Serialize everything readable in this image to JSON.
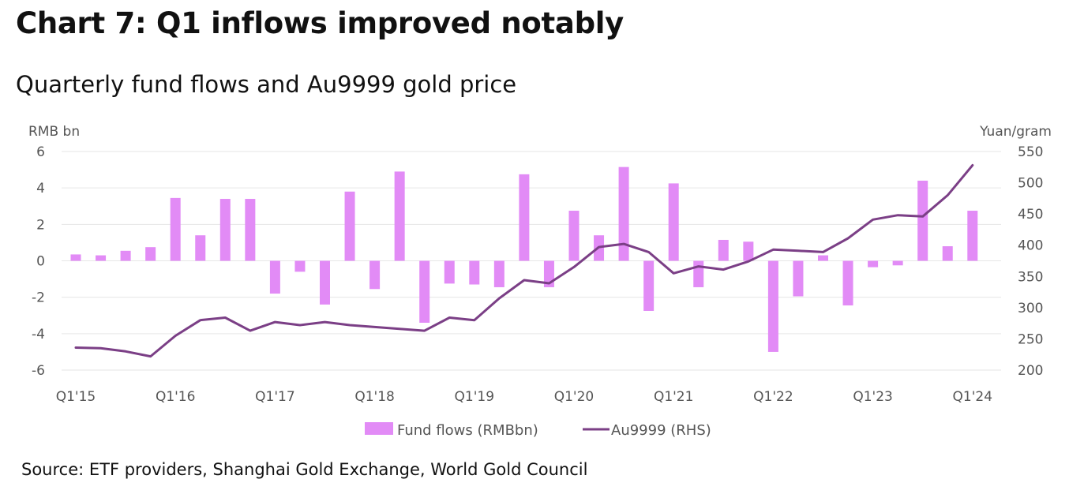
{
  "title": "Chart 7: Q1 inflows improved notably",
  "subtitle": "Quarterly fund flows and Au9999 gold price",
  "source": "Source: ETF providers, Shanghai Gold Exchange, World Gold Council",
  "colors": {
    "bars": "#e28bf6",
    "line": "#7b3f86",
    "grid": "#e6e6e6",
    "text": "#555555"
  },
  "chart_data": {
    "type": "bar",
    "categories": [
      "Q1'15",
      "Q2'15",
      "Q3'15",
      "Q4'15",
      "Q1'16",
      "Q2'16",
      "Q3'16",
      "Q4'16",
      "Q1'17",
      "Q2'17",
      "Q3'17",
      "Q4'17",
      "Q1'18",
      "Q2'18",
      "Q3'18",
      "Q4'18",
      "Q1'19",
      "Q2'19",
      "Q3'19",
      "Q4'19",
      "Q1'20",
      "Q2'20",
      "Q3'20",
      "Q4'20",
      "Q1'21",
      "Q2'21",
      "Q3'21",
      "Q4'21",
      "Q1'22",
      "Q2'22",
      "Q3'22",
      "Q4'22",
      "Q1'23",
      "Q2'23",
      "Q3'23",
      "Q4'23",
      "Q1'24"
    ],
    "x_tick_labels": [
      "Q1'15",
      "Q1'16",
      "Q1'17",
      "Q1'18",
      "Q1'19",
      "Q1'20",
      "Q1'21",
      "Q1'22",
      "Q1'23",
      "Q1'24"
    ],
    "series": [
      {
        "name": "Fund flows (RMBbn)",
        "type": "bar",
        "axis": "left",
        "values": [
          0.35,
          0.3,
          0.55,
          0.75,
          3.45,
          1.4,
          3.4,
          3.4,
          -1.8,
          -0.6,
          -2.4,
          3.8,
          -1.55,
          4.9,
          -3.4,
          -1.25,
          -1.3,
          -1.45,
          4.75,
          -1.45,
          2.75,
          1.4,
          5.15,
          -2.75,
          4.25,
          -1.45,
          1.15,
          1.05,
          -5.0,
          -1.95,
          0.3,
          -2.45,
          -0.35,
          -0.25,
          4.4,
          0.8,
          2.75
        ]
      },
      {
        "name": "Au9999 (RHS)",
        "type": "line",
        "axis": "right",
        "values": [
          236,
          235,
          230,
          222,
          255,
          280,
          284,
          263,
          277,
          272,
          277,
          272,
          269,
          266,
          263,
          284,
          280,
          315,
          344,
          339,
          365,
          397,
          402,
          389,
          355,
          366,
          361,
          374,
          393,
          391,
          389,
          411,
          441,
          448,
          446,
          480,
          528
        ]
      }
    ],
    "ylabel": "RMB bn",
    "ylabel_right": "Yuan/gram",
    "ylim": [
      -6,
      6
    ],
    "ylim_right": [
      200,
      550
    ],
    "yticks": [
      6,
      4,
      2,
      0,
      -2,
      -4,
      -6
    ],
    "yticks_right": [
      550,
      500,
      450,
      400,
      350,
      300,
      250,
      200
    ],
    "legend": [
      "Fund flows (RMBbn)",
      "Au9999 (RHS)"
    ],
    "legend_position": "bottom"
  }
}
